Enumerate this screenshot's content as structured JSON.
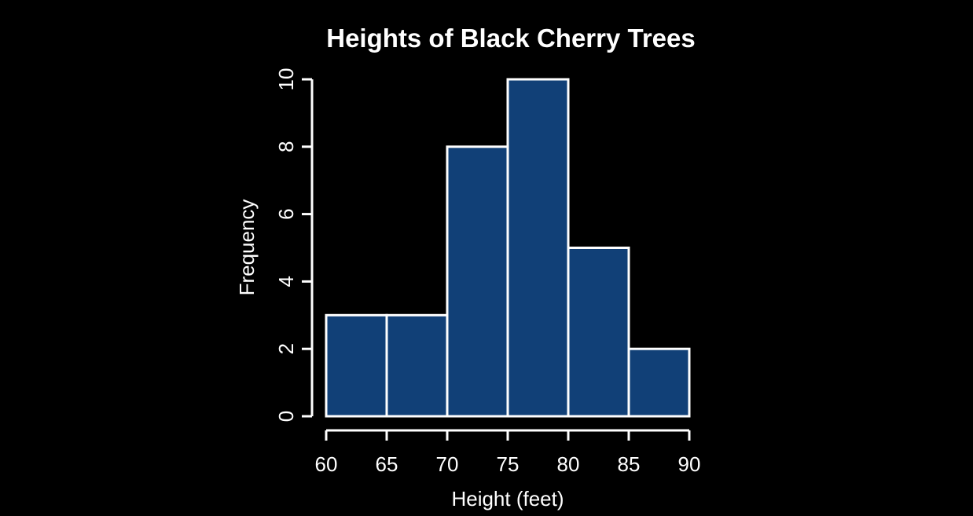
{
  "chart_data": {
    "type": "bar",
    "subtype": "histogram",
    "title": "Heights of Black Cherry Trees",
    "xlabel": "Height (feet)",
    "ylabel": "Frequency",
    "bins": [
      {
        "start": 60,
        "end": 65,
        "count": 3
      },
      {
        "start": 65,
        "end": 70,
        "count": 3
      },
      {
        "start": 70,
        "end": 75,
        "count": 8
      },
      {
        "start": 75,
        "end": 80,
        "count": 10
      },
      {
        "start": 80,
        "end": 85,
        "count": 5
      },
      {
        "start": 85,
        "end": 90,
        "count": 2
      }
    ],
    "xlim": [
      60,
      90
    ],
    "ylim": [
      0,
      10
    ],
    "x_ticks": [
      "60",
      "65",
      "70",
      "75",
      "80",
      "85",
      "90"
    ],
    "y_ticks": [
      "0",
      "2",
      "4",
      "6",
      "8",
      "10"
    ],
    "grid": false,
    "legend": "none",
    "colors": {
      "background": "#000000",
      "bar_fill": "#114077",
      "bar_stroke": "#ffffff",
      "text": "#ffffff"
    }
  }
}
